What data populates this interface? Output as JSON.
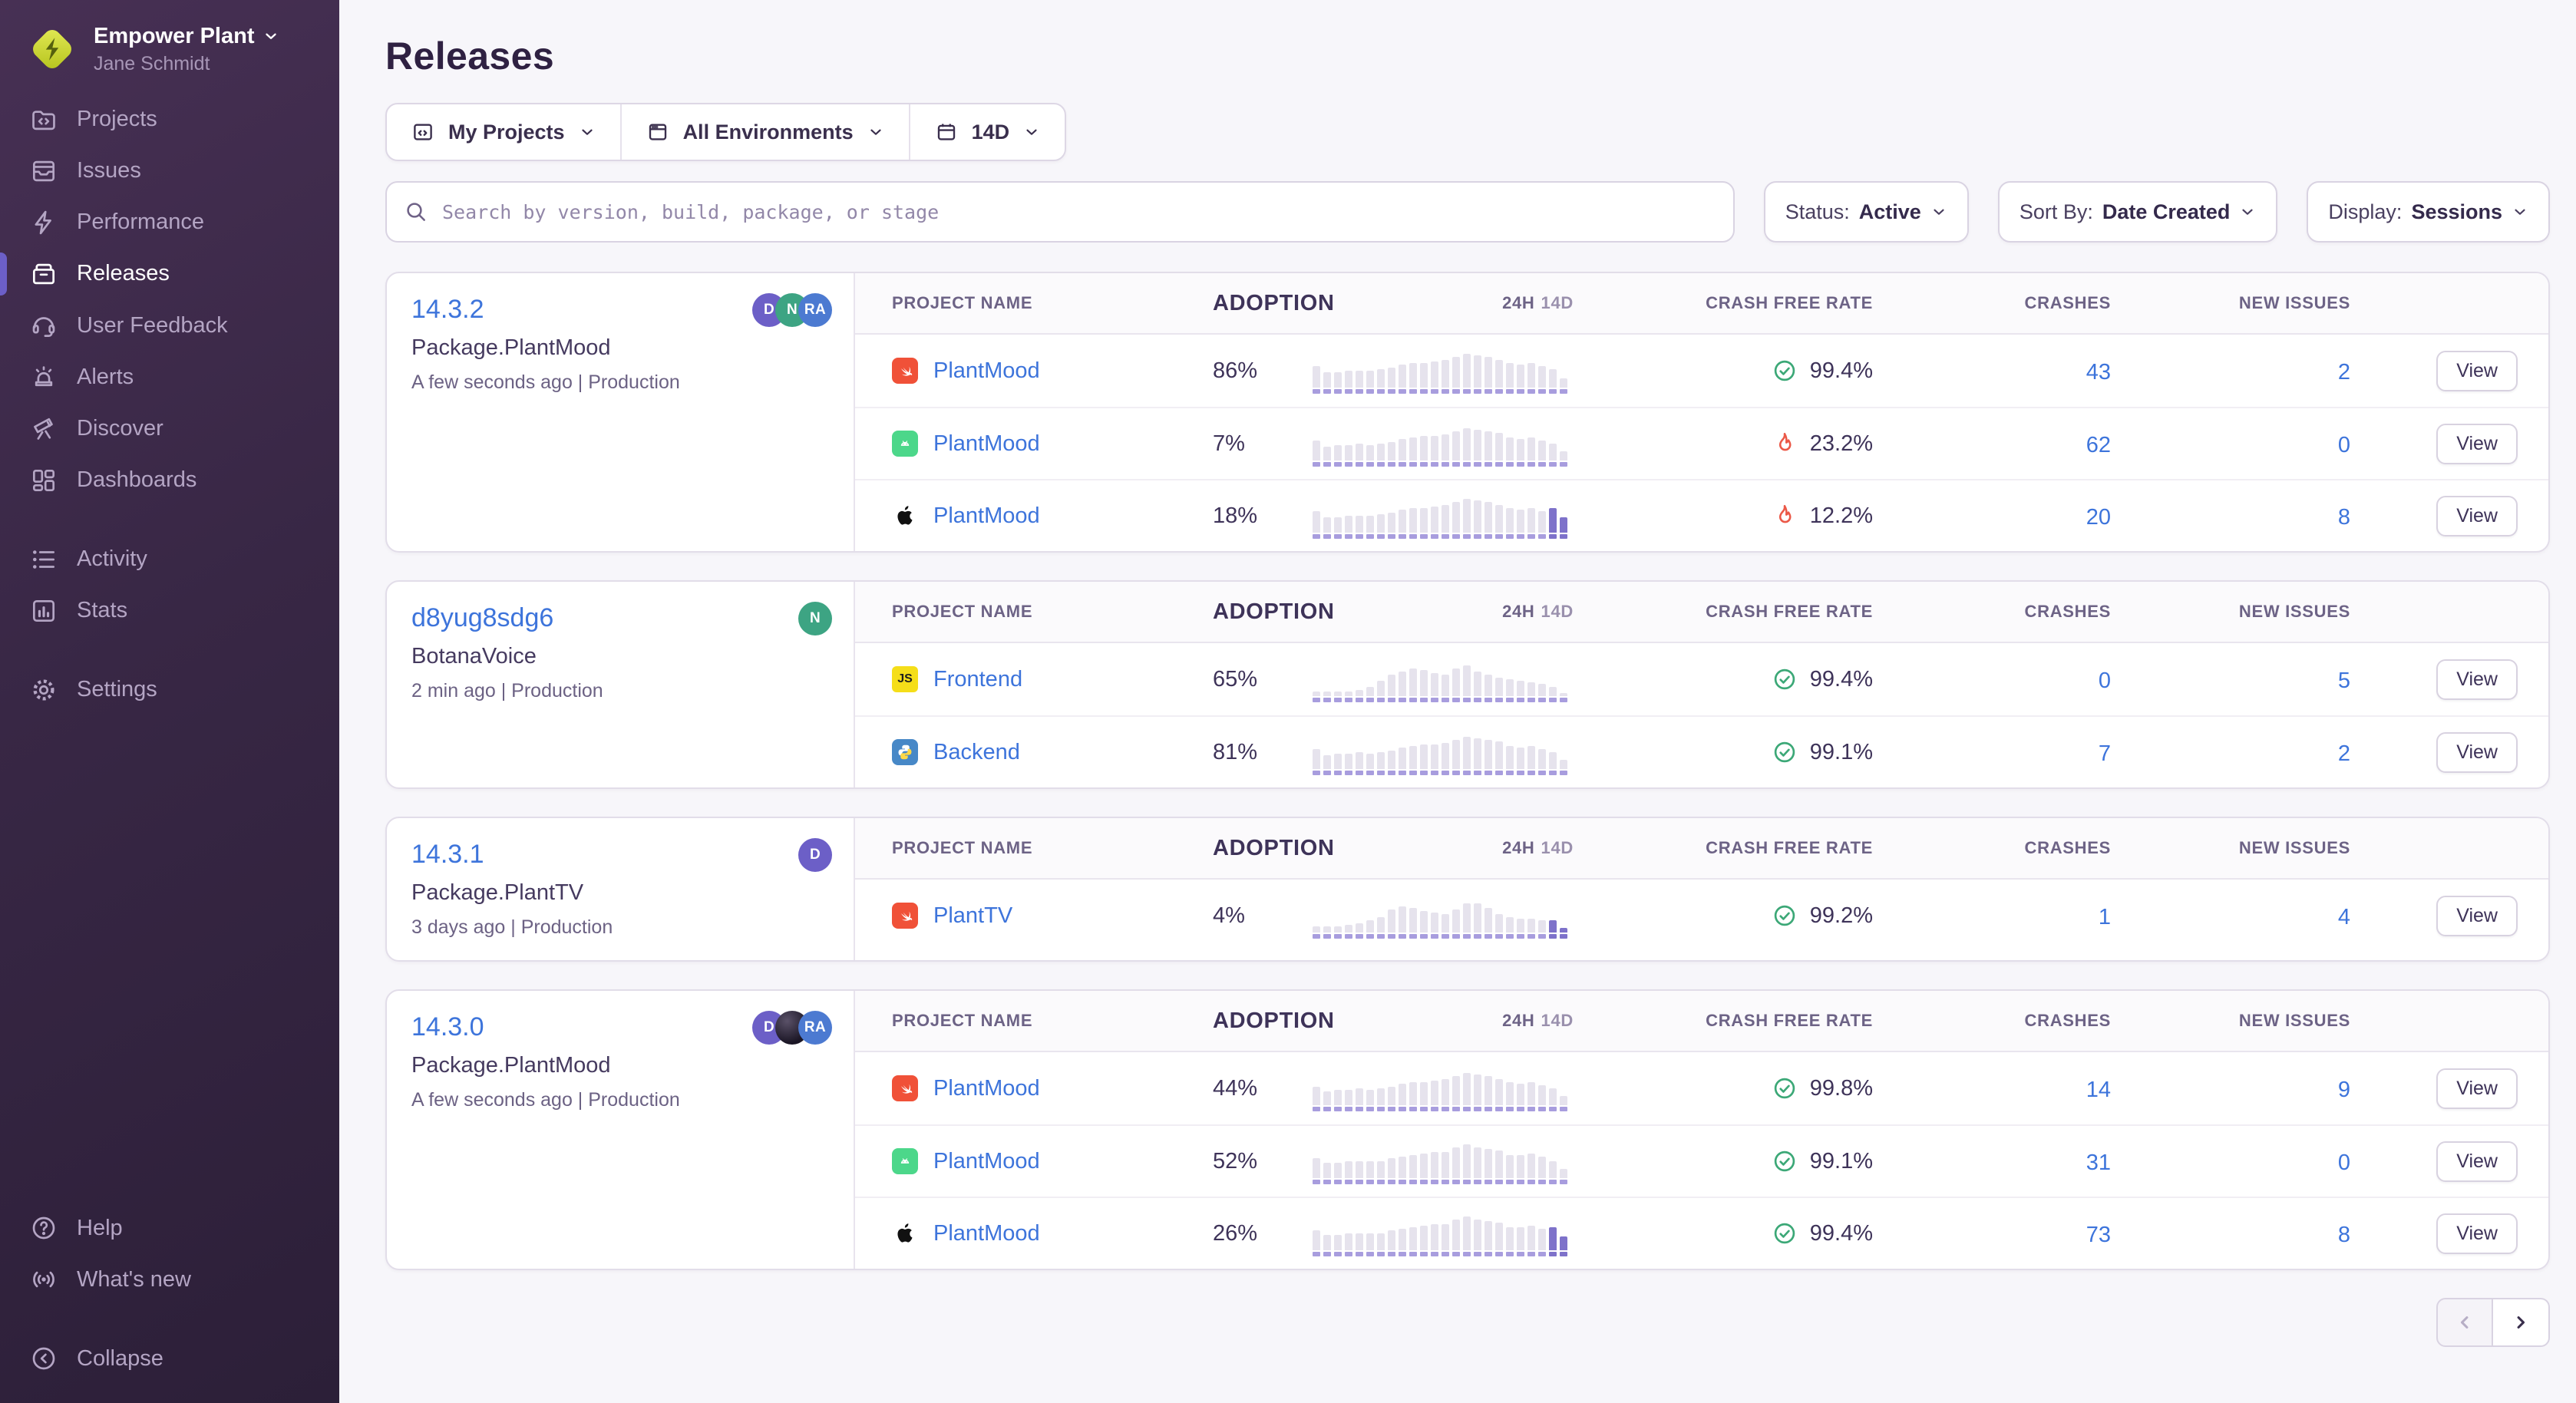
{
  "sidebar": {
    "org": {
      "name": "Empower Plant",
      "user": "Jane Schmidt"
    },
    "sections": [
      {
        "items": [
          {
            "id": "projects",
            "label": "Projects"
          },
          {
            "id": "issues",
            "label": "Issues"
          },
          {
            "id": "performance",
            "label": "Performance"
          },
          {
            "id": "releases",
            "label": "Releases",
            "active": true
          },
          {
            "id": "user-feedback",
            "label": "User Feedback"
          },
          {
            "id": "alerts",
            "label": "Alerts"
          },
          {
            "id": "discover",
            "label": "Discover"
          },
          {
            "id": "dashboards",
            "label": "Dashboards"
          }
        ]
      },
      {
        "items": [
          {
            "id": "activity",
            "label": "Activity"
          },
          {
            "id": "stats",
            "label": "Stats"
          }
        ]
      },
      {
        "items": [
          {
            "id": "settings",
            "label": "Settings"
          }
        ]
      }
    ],
    "footer_items": [
      {
        "id": "help",
        "label": "Help"
      },
      {
        "id": "whats-new",
        "label": "What's new"
      }
    ],
    "collapse": {
      "id": "collapse",
      "label": "Collapse"
    }
  },
  "header": {
    "title": "Releases"
  },
  "filters": {
    "projects": "My Projects",
    "environments": "All Environments",
    "date_range": "14D"
  },
  "search": {
    "placeholder": "Search by version, build, package, or stage"
  },
  "controls": {
    "status_label": "Status:",
    "status_value": "Active",
    "sort_label": "Sort By:",
    "sort_value": "Date Created",
    "display_label": "Display:",
    "display_value": "Sessions"
  },
  "table_headers": {
    "project": "PROJECT NAME",
    "adoption": "ADOPTION",
    "chart_primary": "24H",
    "chart_secondary": "14D",
    "crash_free": "CRASH FREE RATE",
    "crashes": "CRASHES",
    "new_issues": "NEW ISSUES"
  },
  "view_label": "View",
  "releases": [
    {
      "version": "14.3.2",
      "package": "Package.PlantMood",
      "meta": "A few seconds ago | Production",
      "avatars": [
        {
          "type": "initials",
          "label": "D",
          "color": "#6C5FC7"
        },
        {
          "type": "initials",
          "label": "N",
          "color": "#3DA483"
        },
        {
          "type": "initials",
          "label": "RA",
          "color": "#4C7AD1"
        }
      ],
      "rows": [
        {
          "platform": "swift",
          "project": "PlantMood",
          "adoption": "86%",
          "crash_free": "99.4%",
          "status": "healthy",
          "crashes": "43",
          "new_issues": "2",
          "bars": [
            52,
            38,
            40,
            42,
            43,
            42,
            45,
            50,
            56,
            60,
            62,
            65,
            68,
            76,
            84,
            79,
            75,
            70,
            60,
            57,
            61,
            53,
            45,
            24
          ],
          "highlight": 0
        },
        {
          "platform": "android",
          "project": "PlantMood",
          "adoption": "7%",
          "crash_free": "23.2%",
          "status": "unhealthy",
          "crashes": "62",
          "new_issues": "0",
          "bars": [
            50,
            36,
            38,
            40,
            41,
            40,
            43,
            48,
            54,
            58,
            60,
            63,
            66,
            74,
            82,
            77,
            73,
            68,
            58,
            55,
            59,
            51,
            43,
            22
          ],
          "highlight": 0
        },
        {
          "platform": "apple",
          "project": "PlantMood",
          "adoption": "18%",
          "crash_free": "12.2%",
          "status": "unhealthy",
          "crashes": "20",
          "new_issues": "8",
          "bars": [
            52,
            38,
            40,
            42,
            43,
            42,
            45,
            50,
            56,
            60,
            62,
            65,
            68,
            76,
            84,
            79,
            75,
            70,
            60,
            57,
            61,
            53,
            62,
            38
          ],
          "highlight": 2
        }
      ]
    },
    {
      "version": "d8yug8sdg6",
      "package": "BotanaVoice",
      "meta": "2 min ago | Production",
      "avatars": [
        {
          "type": "initials",
          "label": "N",
          "color": "#3DA483"
        }
      ],
      "rows": [
        {
          "platform": "js",
          "project": "Frontend",
          "adoption": "65%",
          "crash_free": "99.4%",
          "status": "healthy",
          "crashes": "0",
          "new_issues": "5",
          "bars": [
            10,
            10,
            11,
            13,
            16,
            24,
            38,
            52,
            62,
            68,
            64,
            57,
            52,
            68,
            76,
            62,
            55,
            48,
            43,
            39,
            36,
            31,
            24,
            9
          ],
          "highlight": 0
        },
        {
          "platform": "python",
          "project": "Backend",
          "adoption": "81%",
          "crash_free": "99.1%",
          "status": "healthy",
          "crashes": "7",
          "new_issues": "2",
          "bars": [
            50,
            36,
            38,
            40,
            41,
            40,
            43,
            48,
            54,
            58,
            60,
            63,
            66,
            74,
            82,
            77,
            73,
            68,
            58,
            55,
            59,
            51,
            43,
            22
          ],
          "highlight": 0
        }
      ]
    },
    {
      "version": "14.3.1",
      "package": "Package.PlantTV",
      "meta": "3 days ago | Production",
      "avatars": [
        {
          "type": "initials",
          "label": "D",
          "color": "#6C5FC7"
        }
      ],
      "rows": [
        {
          "platform": "swift",
          "project": "PlantTV",
          "adoption": "4%",
          "crash_free": "99.2%",
          "status": "healthy",
          "crashes": "1",
          "new_issues": "4",
          "bars": [
            16,
            16,
            17,
            18,
            23,
            32,
            40,
            58,
            66,
            63,
            52,
            49,
            47,
            58,
            72,
            74,
            60,
            45,
            40,
            36,
            34,
            31,
            30,
            10
          ],
          "highlight": 2
        }
      ]
    },
    {
      "version": "14.3.0",
      "package": "Package.PlantMood",
      "meta": "A few seconds ago | Production",
      "avatars": [
        {
          "type": "initials",
          "label": "D",
          "color": "#6C5FC7"
        },
        {
          "type": "photo",
          "label": "",
          "color": "#2b2436"
        },
        {
          "type": "initials",
          "label": "RA",
          "color": "#4C7AD1"
        }
      ],
      "rows": [
        {
          "platform": "swift",
          "project": "PlantMood",
          "adoption": "44%",
          "crash_free": "99.8%",
          "status": "healthy",
          "crashes": "14",
          "new_issues": "9",
          "bars": [
            48,
            36,
            38,
            40,
            41,
            40,
            43,
            47,
            53,
            57,
            59,
            62,
            65,
            73,
            81,
            76,
            72,
            67,
            57,
            54,
            58,
            50,
            43,
            22
          ],
          "highlight": 0
        },
        {
          "platform": "android",
          "project": "PlantMood",
          "adoption": "52%",
          "crash_free": "99.1%",
          "status": "healthy",
          "crashes": "31",
          "new_issues": "0",
          "bars": [
            50,
            37,
            39,
            41,
            42,
            41,
            44,
            49,
            55,
            59,
            61,
            64,
            67,
            75,
            83,
            78,
            74,
            69,
            59,
            56,
            60,
            52,
            44,
            23
          ],
          "highlight": 0
        },
        {
          "platform": "apple",
          "project": "PlantMood",
          "adoption": "26%",
          "crash_free": "99.4%",
          "status": "healthy",
          "crashes": "73",
          "new_issues": "8",
          "bars": [
            50,
            37,
            39,
            41,
            42,
            41,
            44,
            49,
            55,
            59,
            61,
            64,
            67,
            75,
            83,
            78,
            74,
            69,
            59,
            56,
            60,
            52,
            58,
            34
          ],
          "highlight": 2
        }
      ]
    }
  ],
  "pagination": {
    "previous_enabled": false,
    "next_enabled": true
  },
  "colors": {
    "accent": "#6C5FC7",
    "link": "#3D74DB",
    "healthy": "#3CA877",
    "unhealthy": "#EB5948",
    "bar": "#E6E3ED",
    "bar_highlight": "#7E72CA",
    "platform_swift": "#F05138",
    "platform_android": "#4CD78A",
    "platform_js": "#F5DE19",
    "platform_python": "#4788C7",
    "platform_apple": "#111111"
  }
}
